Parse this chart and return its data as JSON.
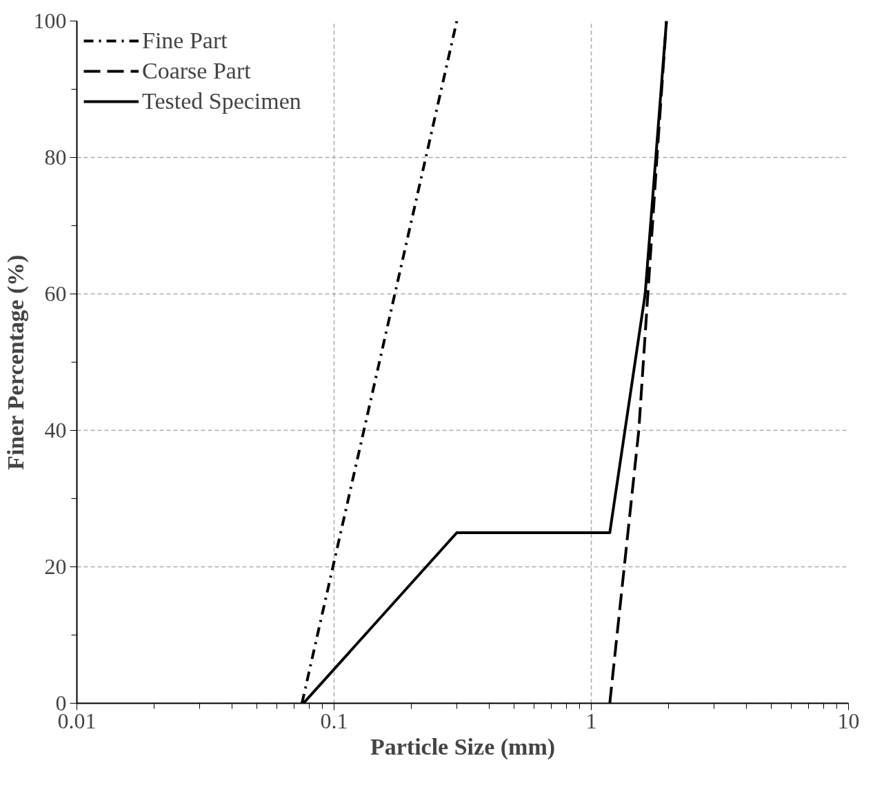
{
  "chart_data": {
    "type": "line",
    "xlabel": "Particle Size (mm)",
    "ylabel": "Finer Percentage (%)",
    "log": "x",
    "xlim": [
      0.01,
      10
    ],
    "xticks": [
      0.01,
      0.1,
      1,
      10
    ],
    "ylim": [
      0,
      100
    ],
    "yticks": [
      0,
      20,
      40,
      60,
      80,
      100
    ],
    "grid": true,
    "legend": "top left",
    "series": [
      {
        "name": "Fine Part",
        "color": "#000000",
        "line_style": "dashdot",
        "x": [
          0.075,
          0.3
        ],
        "values": [
          0,
          100
        ]
      },
      {
        "name": "Coarse Part",
        "color": "#000000",
        "line_style": "dashed",
        "x": [
          1.18,
          1.53,
          1.8,
          1.96
        ],
        "values": [
          0,
          40,
          80,
          100
        ]
      },
      {
        "name": "Tested Specimen",
        "color": "#000000",
        "line_style": "solid",
        "x": [
          0.076,
          0.3,
          1.18,
          1.62,
          1.96
        ],
        "values": [
          0,
          25,
          25,
          60,
          100
        ]
      }
    ]
  }
}
